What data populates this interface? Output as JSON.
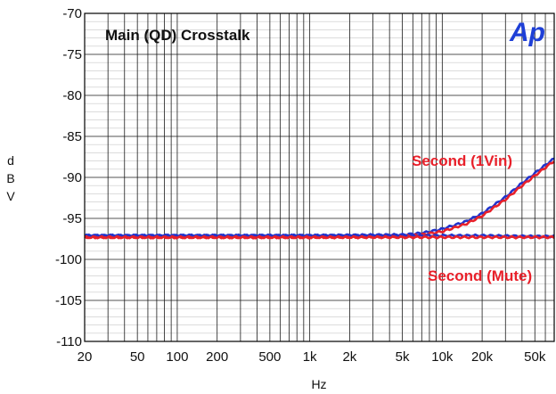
{
  "chart_data": {
    "type": "line",
    "title": "Main (QD) Crosstalk",
    "xlabel": "Hz",
    "ylabel": "dBV",
    "x_scale": "log",
    "xlim": [
      20,
      70000
    ],
    "ylim": [
      -110,
      -70
    ],
    "x_ticks": [
      {
        "value": 20,
        "label": "20"
      },
      {
        "value": 50,
        "label": "50"
      },
      {
        "value": 100,
        "label": "100"
      },
      {
        "value": 200,
        "label": "200"
      },
      {
        "value": 500,
        "label": "500"
      },
      {
        "value": 1000,
        "label": "1k"
      },
      {
        "value": 2000,
        "label": "2k"
      },
      {
        "value": 5000,
        "label": "5k"
      },
      {
        "value": 10000,
        "label": "10k"
      },
      {
        "value": 20000,
        "label": "20k"
      },
      {
        "value": 50000,
        "label": "50k"
      }
    ],
    "y_ticks": [
      -70,
      -75,
      -80,
      -85,
      -90,
      -95,
      -100,
      -105,
      -110
    ],
    "grid": true,
    "colors": {
      "red": "#e8202a",
      "blue": "#2233cc",
      "logo": "#1e3fd6"
    },
    "series": [
      {
        "color": "blue",
        "x": [
          20,
          100,
          1000,
          5000,
          7000,
          10000,
          15000,
          20000,
          30000,
          40000,
          50000,
          60000,
          70000
        ],
        "y": [
          -97.1,
          -97.1,
          -97.1,
          -97.0,
          -96.8,
          -96.3,
          -95.4,
          -94.4,
          -92.4,
          -90.7,
          -89.5,
          -88.5,
          -87.7
        ]
      },
      {
        "color": "red",
        "x": [
          20,
          100,
          1000,
          5000,
          7000,
          10000,
          15000,
          20000,
          30000,
          40000,
          50000,
          60000,
          70000
        ],
        "y": [
          -97.3,
          -97.3,
          -97.3,
          -97.2,
          -97.0,
          -96.6,
          -95.7,
          -94.7,
          -92.7,
          -91.0,
          -89.8,
          -88.8,
          -88.0
        ]
      },
      {
        "color": "blue",
        "x": [
          20,
          100,
          1000,
          5000,
          10000,
          20000,
          50000,
          70000
        ],
        "y": [
          -97.1,
          -97.1,
          -97.1,
          -97.1,
          -97.1,
          -97.1,
          -97.2,
          -97.2
        ]
      },
      {
        "color": "red",
        "x": [
          20,
          100,
          1000,
          5000,
          10000,
          20000,
          50000,
          70000
        ],
        "y": [
          -97.3,
          -97.3,
          -97.3,
          -97.3,
          -97.3,
          -97.3,
          -97.3,
          -97.3
        ]
      }
    ],
    "annotations": [
      {
        "text": "Second (1Vin)",
        "x": 17000,
        "y": -89
      },
      {
        "text": "Second (Mute)",
        "x": 17000,
        "y": -101.8
      }
    ],
    "ylabel_letters": [
      "d",
      "B",
      "V"
    ],
    "logo": "Ap"
  }
}
